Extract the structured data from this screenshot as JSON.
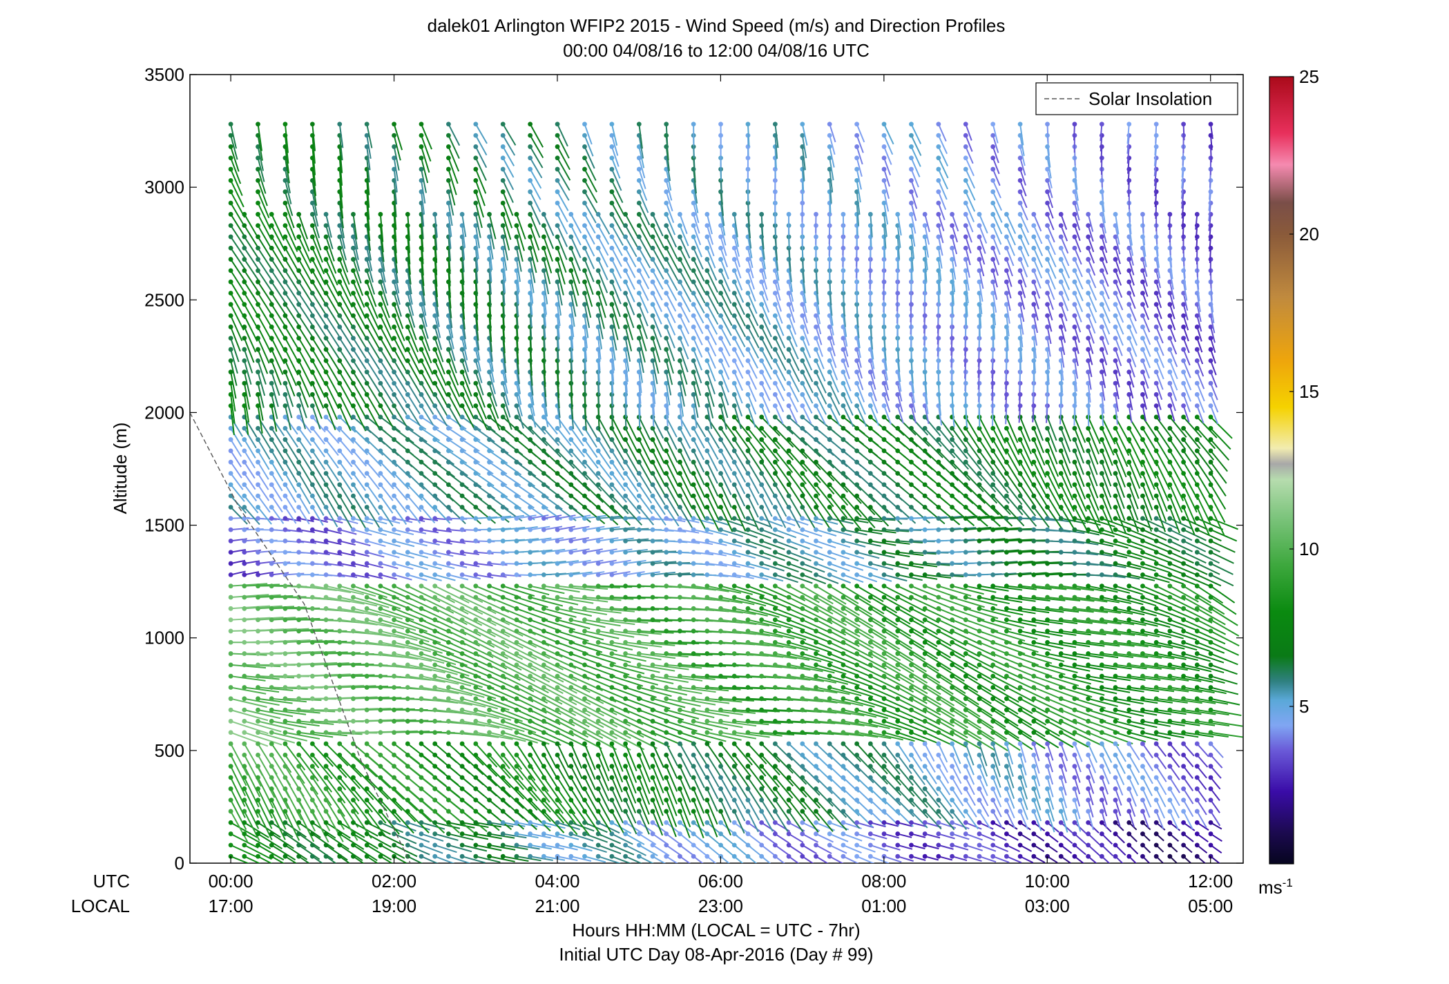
{
  "chart_data": {
    "type": "wind-barb-profile",
    "title": "dalek01 Arlington WFIP2 2015 - Wind Speed (m/s) and Direction Profiles",
    "subtitle": "00:00 04/08/16 to 12:00 04/08/16  UTC",
    "ylabel": "Altitude (m)",
    "xlabel": "Hours HH:MM  (LOCAL = UTC - 7hr)",
    "xlabel2": "Initial UTC Day 08-Apr-2016 (Day # 99)",
    "row_labels": {
      "utc": "UTC",
      "local": "LOCAL"
    },
    "ylim": [
      0,
      3500
    ],
    "xlim_hours": [
      -0.5,
      12.4
    ],
    "y_ticks": [
      0,
      500,
      1000,
      1500,
      2000,
      2500,
      3000,
      3500
    ],
    "x_ticks_hours": [
      0,
      2,
      4,
      6,
      8,
      10,
      12
    ],
    "x_tick_labels_utc": [
      "00:00",
      "02:00",
      "04:00",
      "06:00",
      "08:00",
      "10:00",
      "12:00"
    ],
    "x_tick_labels_local": [
      "17:00",
      "19:00",
      "21:00",
      "23:00",
      "01:00",
      "03:00",
      "05:00"
    ],
    "legend": {
      "label": "Solar Insolation",
      "position": "top-right",
      "line_style": "dashed",
      "color": "#555555"
    },
    "solar_insolation": {
      "x_hours": [
        -0.5,
        0.1,
        0.9,
        1.6,
        2.2
      ],
      "y": [
        2000,
        1580,
        1150,
        450,
        0
      ]
    },
    "colorbar": {
      "min": 0,
      "max": 25,
      "ticks": [
        5,
        10,
        15,
        20,
        25
      ],
      "unit_label": "ms",
      "unit_exponent": "-1",
      "stops": [
        {
          "v": 0,
          "color": "#06051f"
        },
        {
          "v": 1,
          "color": "#1c0a50"
        },
        {
          "v": 2.3,
          "color": "#3a0ca8"
        },
        {
          "v": 3.6,
          "color": "#6a5ad8"
        },
        {
          "v": 4.4,
          "color": "#80a6f3"
        },
        {
          "v": 5.2,
          "color": "#5aa8d8"
        },
        {
          "v": 5.8,
          "color": "#2f8080"
        },
        {
          "v": 6.6,
          "color": "#0a7a16"
        },
        {
          "v": 8,
          "color": "#0a8a10"
        },
        {
          "v": 9.5,
          "color": "#3ea83e"
        },
        {
          "v": 11,
          "color": "#7cc47c"
        },
        {
          "v": 12.2,
          "color": "#b6dcae"
        },
        {
          "v": 12.7,
          "color": "#a8a8a8"
        },
        {
          "v": 13.2,
          "color": "#f2ecb0"
        },
        {
          "v": 14.5,
          "color": "#f5d200"
        },
        {
          "v": 16,
          "color": "#eea50c"
        },
        {
          "v": 18,
          "color": "#c08a3e"
        },
        {
          "v": 20,
          "color": "#8a5a3a"
        },
        {
          "v": 21,
          "color": "#7a4e48"
        },
        {
          "v": 22.2,
          "color": "#f58ab0"
        },
        {
          "v": 23.2,
          "color": "#e8305c"
        },
        {
          "v": 25,
          "color": "#aa0a1a"
        }
      ]
    },
    "barb_profiles": {
      "time_start_hour": 0.0,
      "time_step_hour": 0.1667,
      "time_count": 73,
      "alt_start_m": 30,
      "alt_step_m": 50,
      "layers": [
        {
          "name": "surface",
          "top_m": 200,
          "speed_early": 7.5,
          "speed_late": 1.5,
          "dir_deg": 110
        },
        {
          "name": "low",
          "top_m": 550,
          "speed_early": 9.5,
          "speed_late": 3.5,
          "dir_deg": 140
        },
        {
          "name": "mid",
          "top_m": 1250,
          "speed_early": 10.5,
          "speed_late": 8,
          "dir_deg": 100
        },
        {
          "name": "jet",
          "top_m": 1550,
          "speed_early": 3.5,
          "speed_late": 7,
          "dir_deg": 90
        },
        {
          "name": "upper",
          "top_m": 2000,
          "speed_early": 5,
          "speed_late": 7.5,
          "dir_deg": 135
        },
        {
          "name": "top",
          "top_m": 3300,
          "speed_early": 7,
          "speed_late": 3.5,
          "dir_deg": 160
        }
      ]
    }
  }
}
